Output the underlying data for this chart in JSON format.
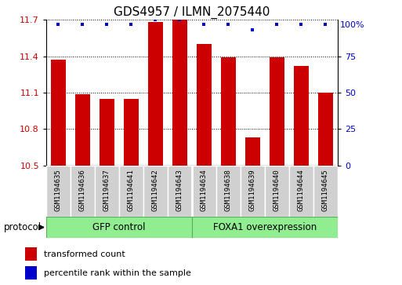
{
  "title": "GDS4957 / ILMN_2075440",
  "samples": [
    "GSM1194635",
    "GSM1194636",
    "GSM1194637",
    "GSM1194641",
    "GSM1194642",
    "GSM1194643",
    "GSM1194634",
    "GSM1194638",
    "GSM1194639",
    "GSM1194640",
    "GSM1194644",
    "GSM1194645"
  ],
  "bar_values": [
    11.37,
    11.09,
    11.05,
    11.05,
    11.68,
    11.7,
    11.5,
    11.39,
    10.73,
    11.39,
    11.32,
    11.1
  ],
  "percentile_values": [
    97,
    97,
    97,
    97,
    100,
    100,
    97,
    97,
    93,
    97,
    97,
    97
  ],
  "ylim_left": [
    10.5,
    11.7
  ],
  "ylim_right": [
    0,
    100
  ],
  "yticks_left": [
    10.5,
    10.8,
    11.1,
    11.4,
    11.7
  ],
  "yticks_right": [
    0,
    25,
    50,
    75,
    100
  ],
  "bar_color": "#cc0000",
  "dot_color": "#0000cc",
  "bar_bottom": 10.5,
  "groups": [
    {
      "label": "GFP control",
      "start": 0,
      "end": 6,
      "color": "#90ee90"
    },
    {
      "label": "FOXA1 overexpression",
      "start": 6,
      "end": 12,
      "color": "#90ee90"
    }
  ],
  "group_label_prefix": "protocol",
  "legend_bar_label": "transformed count",
  "legend_dot_label": "percentile rank within the sample",
  "tick_label_color_left": "#cc0000",
  "tick_label_color_right": "#0000cc",
  "title_fontsize": 11,
  "tick_fontsize": 8,
  "sample_fontsize": 6.5,
  "group_fontsize": 8.5,
  "legend_fontsize": 8
}
